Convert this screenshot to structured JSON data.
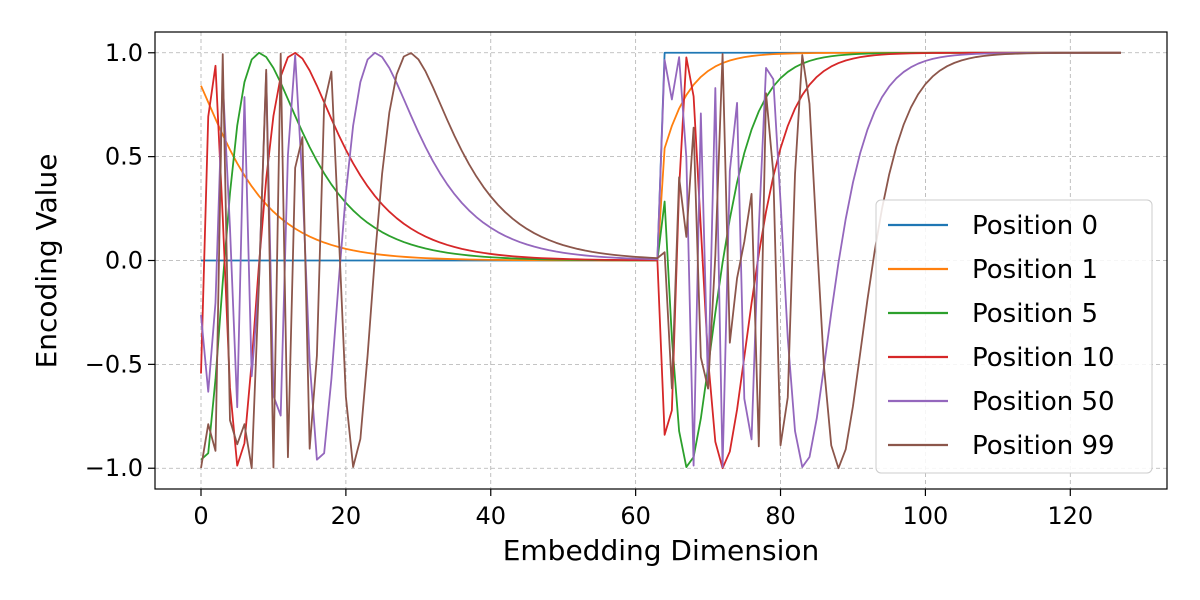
{
  "chart_data": {
    "type": "line",
    "title": "",
    "xlabel": "Embedding Dimension",
    "ylabel": "Encoding Value",
    "xlim": [
      -6.35,
      133.35
    ],
    "ylim": [
      -1.1,
      1.1
    ],
    "x_ticks": [
      0,
      20,
      40,
      60,
      80,
      100,
      120
    ],
    "y_ticks": [
      -1.0,
      -0.5,
      0.0,
      0.5,
      1.0
    ],
    "y_tick_labels": [
      "−1.0",
      "−0.5",
      "0.0",
      "0.5",
      "1.0"
    ],
    "grid": true,
    "legend_position": "right",
    "d_model": 128,
    "series": [
      {
        "name": "Position 0",
        "position": 0,
        "color": "#1f77b4"
      },
      {
        "name": "Position 1",
        "position": 1,
        "color": "#ff7f0e"
      },
      {
        "name": "Position 5",
        "position": 5,
        "color": "#2ca02c"
      },
      {
        "name": "Position 10",
        "position": 10,
        "color": "#d62728"
      },
      {
        "name": "Position 50",
        "position": 50,
        "color": "#9467bd"
      },
      {
        "name": "Position 99",
        "position": 99,
        "color": "#8c564b"
      }
    ]
  }
}
